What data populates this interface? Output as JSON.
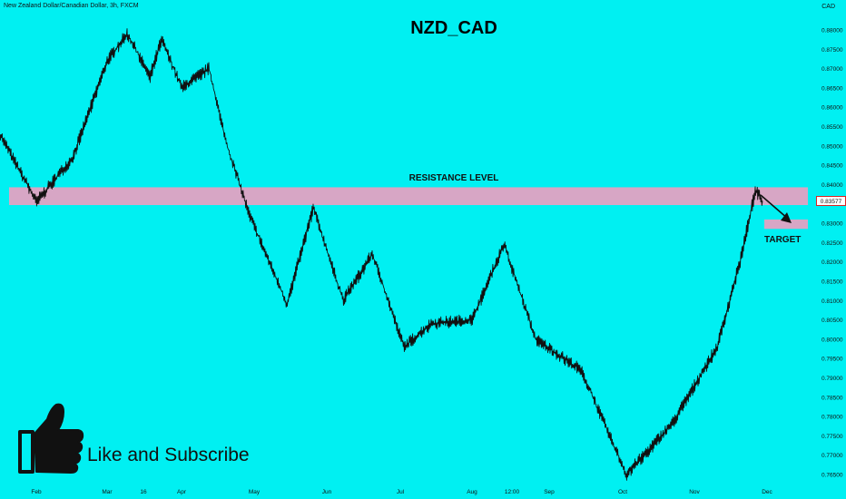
{
  "header": {
    "symbol_info": "New Zealand Dollar/Canadian Dollar, 3h, FXCM",
    "currency": "CAD"
  },
  "chart_data": {
    "type": "line",
    "title": "NZD_CAD",
    "x": [
      "Feb",
      "Mar",
      "16",
      "Apr",
      "May",
      "Jun",
      "Jul",
      "Aug",
      "12:00",
      "Sep",
      "Oct",
      "Nov",
      "Dec"
    ],
    "series": [
      {
        "points": [
          {
            "x": "Jan",
            "y": 0.853
          },
          {
            "x": "Feb",
            "y": 0.8355
          },
          {
            "x": "Feb",
            "y": 0.847
          },
          {
            "x": "Mar",
            "y": 0.872
          },
          {
            "x": "Mar",
            "y": 0.879
          },
          {
            "x": "16",
            "y": 0.868
          },
          {
            "x": "16",
            "y": 0.8775
          },
          {
            "x": "Apr",
            "y": 0.865
          },
          {
            "x": "Apr",
            "y": 0.87
          },
          {
            "x": "Apr",
            "y": 0.85
          },
          {
            "x": "May",
            "y": 0.832
          },
          {
            "x": "May",
            "y": 0.809
          },
          {
            "x": "Jun",
            "y": 0.834
          },
          {
            "x": "Jun",
            "y": 0.81
          },
          {
            "x": "Jun",
            "y": 0.822
          },
          {
            "x": "Jul",
            "y": 0.798
          },
          {
            "x": "Jul",
            "y": 0.804
          },
          {
            "x": "Aug",
            "y": 0.805
          },
          {
            "x": "12:00",
            "y": 0.8245
          },
          {
            "x": "Sep",
            "y": 0.8
          },
          {
            "x": "Sep",
            "y": 0.792
          },
          {
            "x": "Oct",
            "y": 0.765
          },
          {
            "x": "Oct",
            "y": 0.778
          },
          {
            "x": "Nov",
            "y": 0.798
          },
          {
            "x": "Nov",
            "y": 0.82
          },
          {
            "x": "Dec",
            "y": 0.8385
          },
          {
            "x": "Dec",
            "y": 0.8358
          }
        ]
      }
    ],
    "y_ticks": [
      "0.88000",
      "0.87500",
      "0.87000",
      "0.86500",
      "0.86000",
      "0.85500",
      "0.85000",
      "0.84500",
      "0.84000",
      "0.83500",
      "0.83000",
      "0.82500",
      "0.82000",
      "0.81500",
      "0.81000",
      "0.80500",
      "0.80000",
      "0.79500",
      "0.79000",
      "0.78500",
      "0.78000",
      "0.77500",
      "0.77000",
      "0.76500"
    ],
    "ylim": [
      0.7625,
      0.885
    ],
    "last_price": "0.83577",
    "grid": false,
    "annotations": {
      "resistance": {
        "label": "RESISTANCE LEVEL",
        "y_low": 0.8347,
        "y_high": 0.8393
      },
      "target": {
        "label": "TARGET",
        "y_low": 0.829,
        "y_high": 0.8305
      }
    }
  },
  "overlay": {
    "like_text": "Like and Subscribe"
  },
  "colors": {
    "background": "#00F0F2",
    "zone": "#D7A6C5",
    "line": "#111111"
  }
}
